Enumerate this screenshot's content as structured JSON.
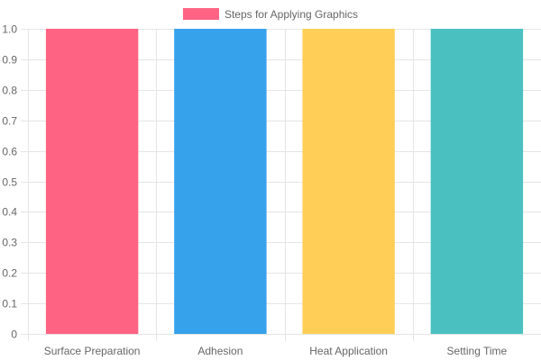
{
  "chart_data": {
    "type": "bar",
    "categories": [
      "Surface Preparation",
      "Adhesion",
      "Heat Application",
      "Setting Time"
    ],
    "series": [
      {
        "name": "Steps for Applying Graphics",
        "values": [
          1,
          1,
          1,
          1
        ],
        "colors": [
          "#ff6384",
          "#36a2eb",
          "#ffce56",
          "#4bc0c0"
        ]
      }
    ],
    "ylim": [
      0,
      1.0
    ],
    "yticks": [
      "0",
      "0.1",
      "0.2",
      "0.3",
      "0.4",
      "0.5",
      "0.6",
      "0.7",
      "0.8",
      "0.9",
      "1.0"
    ],
    "grid": true,
    "legend_position": "top",
    "legend_color": "#ff6384",
    "grid_color": "#e5e5e5",
    "tick_color": "#666666"
  }
}
